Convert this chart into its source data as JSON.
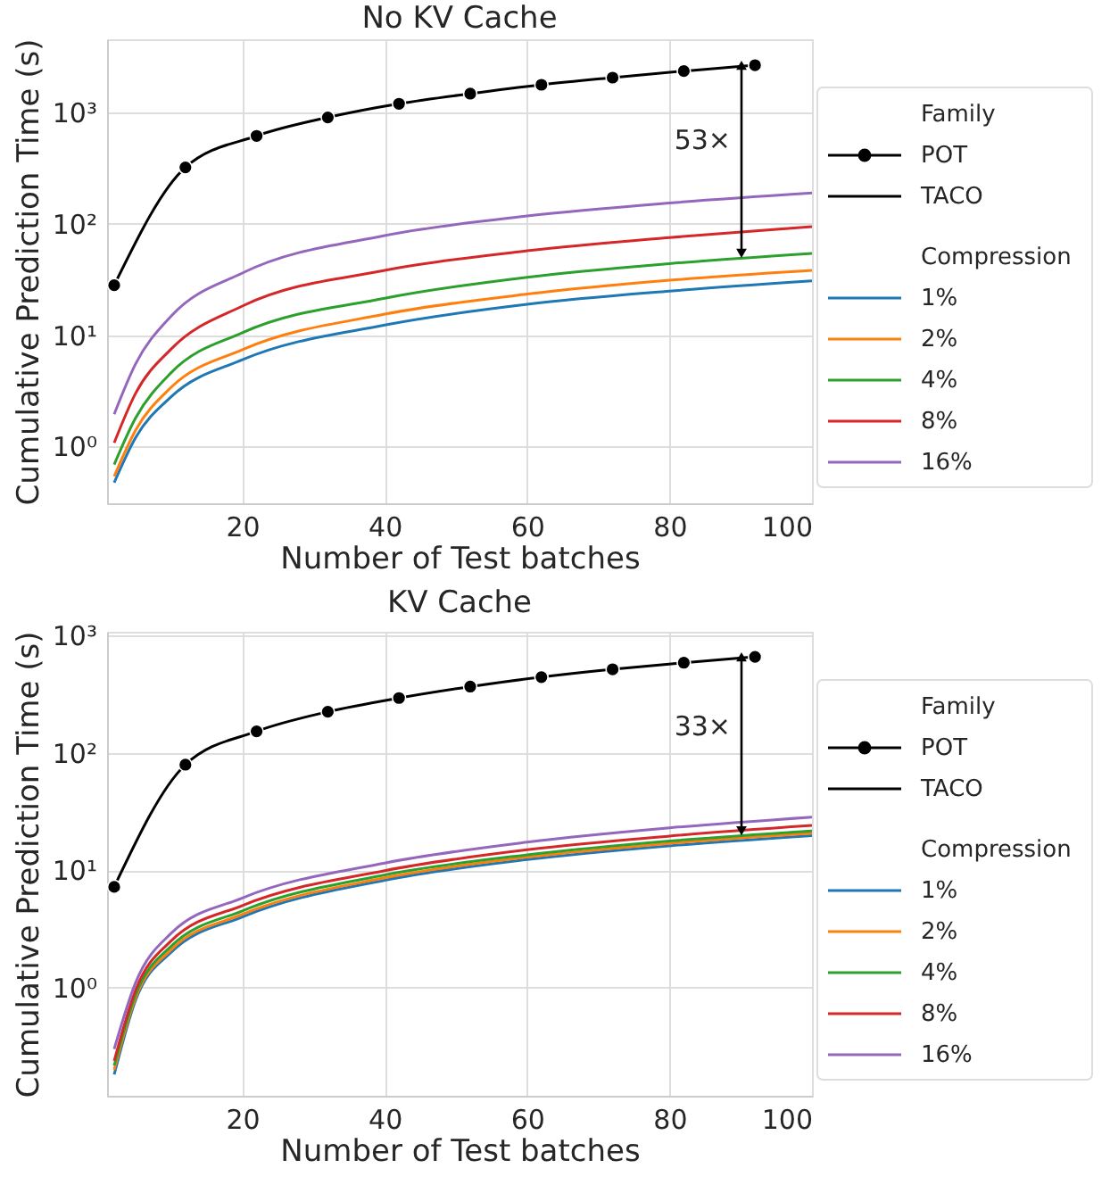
{
  "chart_data": [
    {
      "type": "line",
      "title": "No KV Cache",
      "xlabel": "Number of Test batches",
      "ylabel": "Cumulative Prediction Time (s)",
      "log": "y",
      "grid": true,
      "legend": "right",
      "legend_title": "Compression",
      "xlim": [
        1,
        100
      ],
      "xticks": [
        20,
        40,
        60,
        80,
        100
      ],
      "ylim": [
        0.31,
        4500
      ],
      "yticks": [
        {
          "value": 1,
          "label": "10⁰"
        },
        {
          "value": 10,
          "label": "10¹"
        },
        {
          "value": 100,
          "label": "10²"
        },
        {
          "value": 1000,
          "label": "10³"
        }
      ],
      "x": [
        2,
        5,
        10,
        20,
        40,
        60,
        80,
        100
      ],
      "annotations": [
        "Family",
        "TACO",
        "53×"
      ],
      "series": [
        {
          "name": "POT",
          "color": "#000000",
          "marker": "circle",
          "x": [
            2,
            12,
            22,
            32,
            42,
            52,
            62,
            72,
            82,
            92
          ],
          "values": [
            28,
            319,
            612,
            896,
            1188,
            1463,
            1758,
            2037,
            2333,
            2636
          ]
        },
        {
          "name": "1%",
          "color": "#1f77b4",
          "values": [
            0.475,
            1.2,
            2.8,
            6.0,
            12.3,
            18.9,
            24.8,
            30.6
          ]
        },
        {
          "name": "2%",
          "color": "#ff7f0e",
          "values": [
            0.54,
            1.4,
            3.4,
            7.4,
            15.4,
            23.3,
            31,
            38
          ]
        },
        {
          "name": "4%",
          "color": "#2ca02c",
          "values": [
            0.69,
            1.8,
            4.6,
            10.5,
            21.4,
            33,
            43.7,
            54
          ]
        },
        {
          "name": "8%",
          "color": "#d62728",
          "values": [
            1.08,
            3.0,
            7.5,
            18.2,
            38,
            57,
            75,
            94
          ]
        },
        {
          "name": "16%",
          "color": "#9467bd",
          "values": [
            1.95,
            5.5,
            14.8,
            36,
            78,
            117,
            153,
            188
          ]
        }
      ]
    },
    {
      "type": "line",
      "title": "KV Cache",
      "xlabel": "Number of Test batches",
      "ylabel": "Cumulative Prediction Time (s)",
      "log": "y",
      "grid": true,
      "legend": "right",
      "legend_title": "Compression",
      "xlim": [
        1,
        100
      ],
      "xticks": [
        20,
        40,
        60,
        80,
        100
      ],
      "ylim": [
        0.12,
        1070
      ],
      "yticks": [
        {
          "value": 1,
          "label": "10⁰"
        },
        {
          "value": 10,
          "label": "10¹"
        },
        {
          "value": 100,
          "label": "10²"
        },
        {
          "value": 1000,
          "label": "10³"
        }
      ],
      "x": [
        2,
        5,
        10,
        20,
        40,
        60,
        80,
        100
      ],
      "annotations": [
        "Family",
        "TACO",
        "33×"
      ],
      "series": [
        {
          "name": "POT",
          "color": "#000000",
          "marker": "circle",
          "x": [
            2,
            12,
            22,
            32,
            42,
            52,
            62,
            72,
            82,
            92
          ],
          "values": [
            7.2,
            79,
            152,
            223,
            292,
            365,
            440,
            513,
            583,
            655
          ]
        },
        {
          "name": "1%",
          "color": "#1f77b4",
          "values": [
            0.182,
            0.78,
            2.0,
            4.0,
            8.2,
            12.3,
            16.1,
            19.7
          ]
        },
        {
          "name": "2%",
          "color": "#ff7f0e",
          "values": [
            0.2,
            0.82,
            2.1,
            4.2,
            8.6,
            12.9,
            16.9,
            20.6
          ]
        },
        {
          "name": "4%",
          "color": "#2ca02c",
          "values": [
            0.217,
            0.87,
            2.25,
            4.5,
            9.1,
            13.5,
            17.7,
            21.6
          ]
        },
        {
          "name": "8%",
          "color": "#d62728",
          "values": [
            0.238,
            0.95,
            2.5,
            5.0,
            9.9,
            14.9,
            19.5,
            24
          ]
        },
        {
          "name": "16%",
          "color": "#9467bd",
          "values": [
            0.3,
            1.1,
            2.9,
            5.8,
            11.5,
            17.3,
            22.9,
            28.3
          ]
        }
      ]
    }
  ]
}
